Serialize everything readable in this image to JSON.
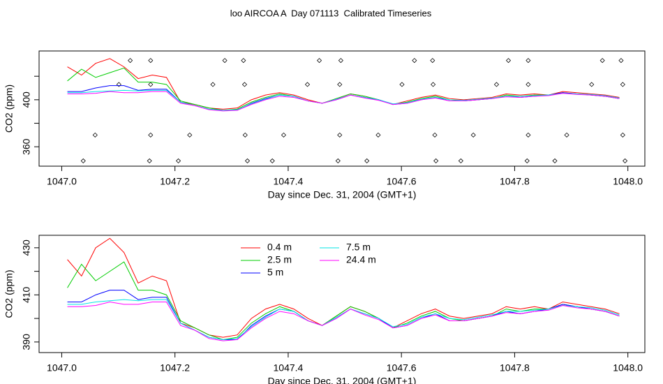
{
  "chart_data": [
    {
      "type": "line",
      "title": "loo AIRCOA A  Day 071113  Calibrated Timeseries",
      "xlabel": "Day since Dec. 31, 2004 (GMT+1)",
      "ylabel": "CO2 (ppm)",
      "xlim": [
        1046.96,
        1048.03
      ],
      "ylim": [
        343.5,
        441.5
      ],
      "xticks": [
        {
          "value": 1047,
          "label": "1047.0"
        },
        {
          "value": 1047.2,
          "label": "1047.2"
        },
        {
          "value": 1047.4,
          "label": "1047.4"
        },
        {
          "value": 1047.6,
          "label": "1047.6"
        },
        {
          "value": 1047.8,
          "label": "1047.8"
        },
        {
          "value": 1048,
          "label": "1048.0"
        }
      ],
      "yticks": [
        360,
        400
      ],
      "minor_yticks": [
        380,
        420
      ],
      "x": [
        1047.01,
        1047.035,
        1047.06,
        1047.085,
        1047.11,
        1047.135,
        1047.16,
        1047.185,
        1047.21,
        1047.235,
        1047.26,
        1047.285,
        1047.31,
        1047.335,
        1047.36,
        1047.385,
        1047.41,
        1047.435,
        1047.46,
        1047.485,
        1047.51,
        1047.535,
        1047.56,
        1047.585,
        1047.61,
        1047.635,
        1047.66,
        1047.685,
        1047.71,
        1047.735,
        1047.76,
        1047.785,
        1047.81,
        1047.835,
        1047.86,
        1047.885,
        1047.91,
        1047.935,
        1047.96,
        1047.985
      ],
      "series": [
        {
          "name": "0.4 m",
          "color": "#ff0000",
          "values": [
            428,
            421,
            431,
            435,
            428,
            418,
            421,
            419,
            398,
            396,
            393,
            392,
            393,
            400,
            404,
            406,
            404,
            400,
            397,
            401,
            405,
            403,
            400,
            396,
            399,
            402,
            404,
            401,
            400,
            401,
            402,
            405,
            404,
            405,
            404,
            407,
            406,
            405,
            404,
            402
          ]
        },
        {
          "name": "2.5 m",
          "color": "#00cd00",
          "values": [
            416,
            426,
            419,
            423,
            427,
            415,
            415,
            413,
            399,
            396,
            393,
            391,
            392,
            398,
            402,
            405,
            403,
            399,
            397,
            401,
            405,
            403,
            400,
            396,
            398,
            401,
            403,
            400,
            399,
            400,
            401,
            404,
            403,
            404,
            404,
            406,
            405,
            404,
            403,
            401
          ]
        },
        {
          "name": "5 m",
          "color": "#0000ff",
          "values": [
            407,
            407,
            410,
            412,
            412,
            408,
            409,
            409,
            398,
            395,
            392,
            391,
            391,
            397,
            401,
            404,
            403,
            399,
            397,
            400,
            404,
            402,
            400,
            396,
            397,
            400,
            402,
            399,
            399,
            400,
            401,
            403,
            402,
            403,
            404,
            406,
            405,
            404,
            403,
            401
          ]
        },
        {
          "name": "7.5 m",
          "color": "#00e5e5",
          "values": [
            406,
            406,
            407,
            407.5,
            408,
            407.5,
            408,
            408,
            398,
            395,
            392,
            391,
            391.5,
            396.5,
            400.5,
            404,
            403,
            399,
            397,
            400.5,
            404,
            402,
            400,
            396.5,
            397.5,
            400.5,
            402,
            400,
            399.5,
            400.5,
            401.5,
            403,
            403,
            403.5,
            404,
            405.5,
            405,
            404.5,
            403.5,
            401.5
          ]
        },
        {
          "name": "24.4 m",
          "color": "#ff00ff",
          "values": [
            405,
            405,
            405.5,
            407,
            406,
            406,
            407,
            407,
            397,
            395,
            391.5,
            390.5,
            391,
            396,
            400,
            403,
            402,
            399,
            397,
            400,
            404,
            401.5,
            399.5,
            396,
            397,
            400,
            401.5,
            399,
            399,
            400,
            401,
            402.5,
            402,
            403,
            403.5,
            405.5,
            404.5,
            404,
            403,
            401
          ]
        }
      ],
      "markers": {
        "x": [
          1047.121,
          1047.157,
          1047.288,
          1047.321,
          1047.455,
          1047.493,
          1047.623,
          1047.655,
          1047.789,
          1047.824,
          1047.955,
          1047.988,
          1047.101,
          1047.157,
          1047.267,
          1047.323,
          1047.434,
          1047.491,
          1047.601,
          1047.656,
          1047.768,
          1047.824,
          1047.936,
          1047.991,
          1047.059,
          1047.157,
          1047.226,
          1047.324,
          1047.392,
          1047.491,
          1047.559,
          1047.659,
          1047.727,
          1047.824,
          1047.892,
          1047.991,
          1047.038,
          1047.155,
          1047.206,
          1047.328,
          1047.372,
          1047.488,
          1047.539,
          1047.661,
          1047.705,
          1047.822,
          1047.871,
          1047.995
        ],
        "values": [
          433.4,
          433.4,
          433.4,
          433.4,
          433.4,
          433.4,
          433.4,
          433.4,
          433.4,
          433.4,
          433.4,
          433.4,
          413,
          413,
          413,
          413,
          413,
          413,
          413,
          413,
          413,
          413,
          413,
          413,
          370,
          370,
          370,
          370,
          370,
          370,
          370,
          370,
          370,
          370,
          370,
          370,
          348,
          348,
          348,
          348,
          348,
          348,
          348,
          348,
          348,
          348,
          348,
          348
        ]
      }
    },
    {
      "type": "line",
      "xlabel": "Day since Dec. 31, 2004 (GMT+1)",
      "ylabel": "CO2 (ppm)",
      "xlim": [
        1046.96,
        1048.03
      ],
      "ylim": [
        385.5,
        435.3
      ],
      "xticks": [
        {
          "value": 1047,
          "label": "1047.0"
        },
        {
          "value": 1047.2,
          "label": "1047.2"
        },
        {
          "value": 1047.4,
          "label": "1047.4"
        },
        {
          "value": 1047.6,
          "label": "1047.6"
        },
        {
          "value": 1047.8,
          "label": "1047.8"
        },
        {
          "value": 1048,
          "label": "1048.0"
        }
      ],
      "yticks": [
        390,
        410,
        430
      ],
      "minor_yticks": [
        400,
        420
      ],
      "legend": true,
      "x": [
        1047.01,
        1047.035,
        1047.06,
        1047.085,
        1047.11,
        1047.135,
        1047.16,
        1047.185,
        1047.21,
        1047.235,
        1047.26,
        1047.285,
        1047.31,
        1047.335,
        1047.36,
        1047.385,
        1047.41,
        1047.435,
        1047.46,
        1047.485,
        1047.51,
        1047.535,
        1047.56,
        1047.585,
        1047.61,
        1047.635,
        1047.66,
        1047.685,
        1047.71,
        1047.735,
        1047.76,
        1047.785,
        1047.81,
        1047.835,
        1047.86,
        1047.885,
        1047.91,
        1047.935,
        1047.96,
        1047.985
      ],
      "series": [
        {
          "name": "0.4 m",
          "color": "#ff0000",
          "values": [
            425,
            418,
            430,
            434,
            428,
            415,
            418,
            416,
            398,
            396,
            393,
            392,
            393,
            400,
            404,
            406,
            404,
            400,
            397,
            401,
            405,
            403,
            400,
            396,
            399,
            402,
            404,
            401,
            400,
            401,
            402,
            405,
            404,
            405,
            404,
            407,
            406,
            405,
            404,
            402
          ]
        },
        {
          "name": "2.5 m",
          "color": "#00cd00",
          "values": [
            413,
            423,
            416,
            420,
            424,
            412,
            412,
            410,
            399,
            396,
            393,
            391,
            392,
            398,
            402,
            405,
            403,
            399,
            397,
            401,
            405,
            403,
            400,
            396,
            398,
            401,
            403,
            400,
            399,
            400,
            401,
            404,
            403,
            404,
            404,
            406,
            405,
            404,
            403,
            401
          ]
        },
        {
          "name": "5 m",
          "color": "#0000ff",
          "values": [
            407,
            407,
            410,
            412,
            412,
            408,
            409,
            409,
            398,
            395,
            392,
            391,
            391,
            397,
            401,
            404,
            403,
            399,
            397,
            400,
            404,
            402,
            400,
            396,
            397,
            400,
            402,
            399,
            399,
            400,
            401,
            403,
            402,
            403,
            404,
            406,
            405,
            404,
            403,
            401
          ]
        },
        {
          "name": "7.5 m",
          "color": "#00e5e5",
          "values": [
            406,
            406,
            407,
            407.5,
            408,
            407.5,
            408,
            408,
            398,
            395,
            392,
            391,
            391.5,
            396.5,
            400.5,
            404,
            403,
            399,
            397,
            400.5,
            404,
            402,
            400,
            396.5,
            397.5,
            400.5,
            402,
            400,
            399.5,
            400.5,
            401.5,
            403,
            403,
            403.5,
            404,
            405.5,
            405,
            404.5,
            403.5,
            401.5
          ]
        },
        {
          "name": "24.4 m",
          "color": "#ff00ff",
          "values": [
            405,
            405,
            405.5,
            407,
            406,
            406,
            407,
            407,
            397,
            395,
            391.5,
            390.5,
            391,
            396,
            400,
            403,
            402,
            399,
            397,
            400,
            404,
            401.5,
            399.5,
            396,
            397,
            400,
            401.5,
            399,
            399,
            400,
            401,
            402.5,
            402,
            403,
            403.5,
            405.5,
            404.5,
            404,
            403,
            401
          ]
        }
      ]
    }
  ]
}
